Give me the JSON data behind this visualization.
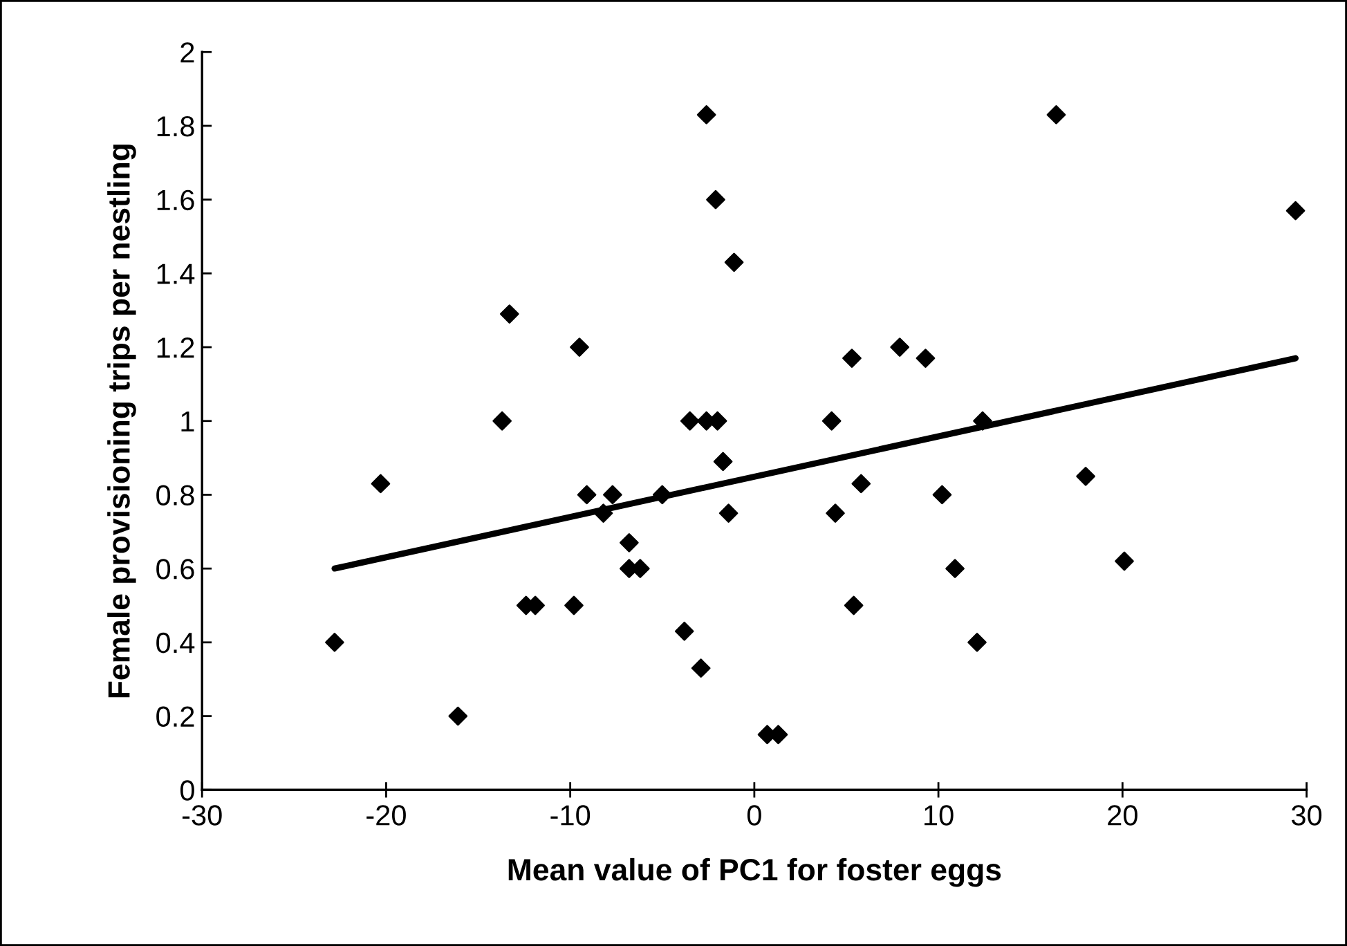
{
  "chart_data": {
    "type": "scatter",
    "xlabel": "Mean value of PC1 for foster eggs",
    "ylabel": "Female provisioning trips per nestling",
    "xlim": [
      -30,
      30
    ],
    "ylim": [
      0,
      2
    ],
    "xticks": [
      -30,
      -20,
      -10,
      0,
      10,
      20,
      30
    ],
    "yticks": [
      0,
      0.2,
      0.4,
      0.6,
      0.8,
      1,
      1.2,
      1.4,
      1.6,
      1.8,
      2
    ],
    "grid": false,
    "legend": false,
    "series": [
      {
        "marker": "diamond",
        "color": "#000000",
        "x": [
          -22.8,
          -20.3,
          -16.1,
          -13.7,
          -13.3,
          -12.4,
          -11.9,
          -9.8,
          -9.5,
          -9.1,
          -8.2,
          -7.7,
          -6.8,
          -6.8,
          -6.2,
          -5.0,
          -3.8,
          -3.5,
          -2.9,
          -2.6,
          -2.0,
          -2.6,
          -2.1,
          -1.7,
          -1.4,
          -1.1,
          0.7,
          1.3,
          4.2,
          4.4,
          5.3,
          5.4,
          5.8,
          7.9,
          9.3,
          10.2,
          10.9,
          12.1,
          12.4,
          16.4,
          18.0,
          20.1,
          29.4
        ],
        "values": [
          0.4,
          0.83,
          0.2,
          1.0,
          1.29,
          0.5,
          0.5,
          0.5,
          1.2,
          0.8,
          0.75,
          0.8,
          0.67,
          0.6,
          0.6,
          0.8,
          0.43,
          1.0,
          0.33,
          1.0,
          1.0,
          1.83,
          1.6,
          0.89,
          0.75,
          1.43,
          0.15,
          0.15,
          1.0,
          0.75,
          1.17,
          0.5,
          0.83,
          1.2,
          1.17,
          0.8,
          0.6,
          0.4,
          1.0,
          1.83,
          0.85,
          0.62,
          1.57
        ]
      },
      {
        "type": "line",
        "marker": "none",
        "line_style": "solid",
        "color": "#000000",
        "x": [
          -22.8,
          29.4
        ],
        "values": [
          0.6,
          1.17
        ]
      }
    ]
  }
}
